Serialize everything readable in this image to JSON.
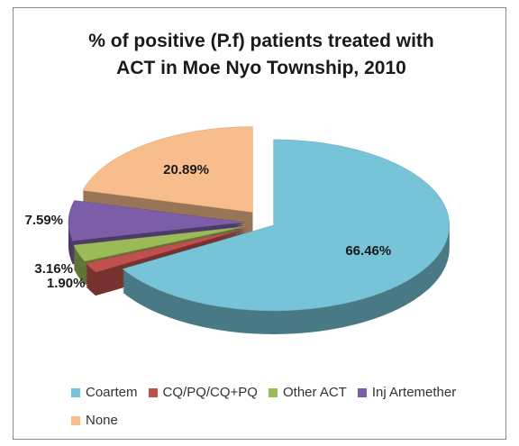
{
  "chart_data": {
    "type": "pie3d",
    "title": "% of positive (P.f) patients treated with ACT in Moe Nyo Township, 2010",
    "categories": [
      "Coartem",
      "CQ/PQ/CQ+PQ",
      "Other ACT",
      "Inj Artemether",
      "None"
    ],
    "values": [
      66.46,
      1.9,
      3.16,
      7.59,
      20.89
    ],
    "value_labels": [
      "66.46%",
      "1.90%",
      "3.16%",
      "7.59%",
      "20.89%"
    ],
    "colors": [
      "#77c3d8",
      "#c0504d",
      "#9bbb59",
      "#7b5ea7",
      "#f7bd8c"
    ],
    "legend": "bottom"
  }
}
